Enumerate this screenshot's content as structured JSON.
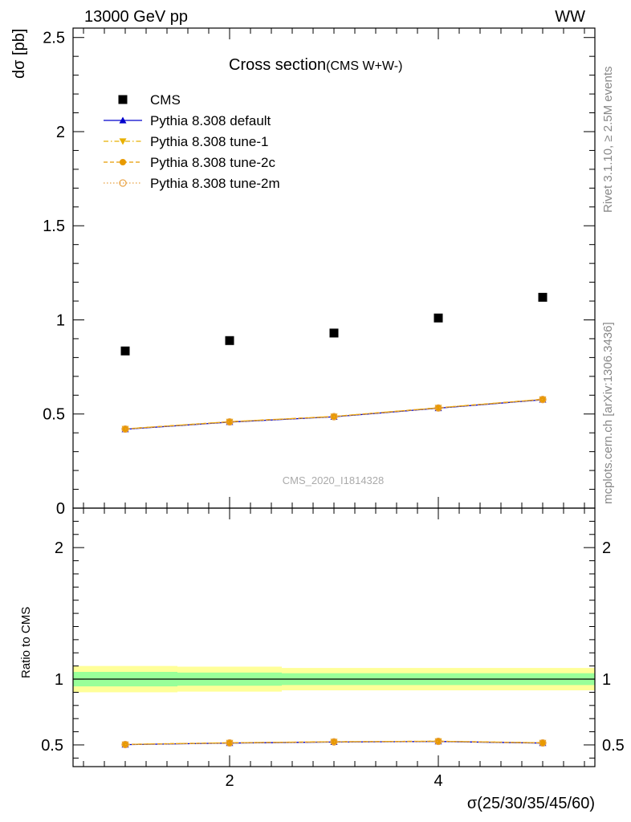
{
  "header": {
    "energy_label": "13000 GeV pp",
    "process_label": "WW",
    "title_main": "Cross section",
    "title_sub": "(CMS W+W-)",
    "side_rivet": "Rivet 3.1.10, ≥ 2.5M events",
    "side_mcplots": "mcplots.cern.ch [arXiv:1306.3436]",
    "watermark": "CMS_2020_I1814328"
  },
  "chart_data": [
    {
      "type": "scatter",
      "title": "Cross section (CMS W+W-)",
      "xlabel": "σ(25/30/35/45/60)",
      "ylabel": "dσ [pb]",
      "xlim": [
        0.5,
        5.5
      ],
      "ylim": [
        0,
        2.55
      ],
      "y_ticks": [
        "0",
        "0.5",
        "1",
        "1.5",
        "2",
        "2.5"
      ],
      "y_tick_values": [
        0,
        0.5,
        1,
        1.5,
        2,
        2.5
      ],
      "legend_position": "top-left",
      "series": [
        {
          "name": "CMS",
          "color": "#000000",
          "marker": "square",
          "x": [
            1,
            2,
            3,
            4,
            5
          ],
          "values": [
            0.835,
            0.89,
            0.93,
            1.01,
            1.12
          ]
        },
        {
          "name": "Pythia 8.308 default",
          "color": "#0000cc",
          "marker": "triangle-up",
          "line": "solid",
          "x": [
            1,
            2,
            3,
            4,
            5
          ],
          "values": [
            0.419,
            0.457,
            0.485,
            0.531,
            0.576
          ]
        },
        {
          "name": "Pythia 8.308 tune-1",
          "color": "#e8b000",
          "marker": "triangle-down",
          "line": "dashdot",
          "x": [
            1,
            2,
            3,
            4,
            5
          ],
          "values": [
            0.421,
            0.459,
            0.487,
            0.533,
            0.578
          ]
        },
        {
          "name": "Pythia 8.308 tune-2c",
          "color": "#e89a00",
          "marker": "circle",
          "line": "dashed",
          "x": [
            1,
            2,
            3,
            4,
            5
          ],
          "values": [
            0.421,
            0.459,
            0.487,
            0.533,
            0.578
          ]
        },
        {
          "name": "Pythia 8.308 tune-2m",
          "color": "#e8a040",
          "marker": "circle-open",
          "line": "dotted",
          "x": [
            1,
            2,
            3,
            4,
            5
          ],
          "values": [
            0.42,
            0.458,
            0.486,
            0.532,
            0.577
          ]
        }
      ]
    },
    {
      "type": "line",
      "ylabel": "Ratio to CMS",
      "xlabel": "σ(25/30/35/45/60)",
      "xlim": [
        0.5,
        5.5
      ],
      "ylim": [
        0.335,
        2.3
      ],
      "x_ticks": [
        "2",
        "4"
      ],
      "x_tick_values": [
        2,
        4
      ],
      "y_ticks": [
        "0.5",
        "1",
        "2"
      ],
      "y_tick_values": [
        0.5,
        1,
        2
      ],
      "reference_line": 1,
      "bands": {
        "x_edges": [
          0.5,
          1.5,
          2.5,
          3.5,
          4.5,
          5.5
        ],
        "stat_color": "#99ff99",
        "total_color": "#ffff99",
        "stat_half_widths": [
          0.055,
          0.05,
          0.045,
          0.045,
          0.045
        ],
        "total_half_widths": [
          0.1,
          0.095,
          0.085,
          0.085,
          0.085
        ]
      },
      "series": [
        {
          "name": "Pythia 8.308 default",
          "color": "#0000cc",
          "x": [
            1,
            2,
            3,
            4,
            5
          ],
          "values": [
            0.502,
            0.514,
            0.522,
            0.526,
            0.514
          ]
        },
        {
          "name": "Pythia 8.308 tune-1",
          "color": "#e8b000",
          "x": [
            1,
            2,
            3,
            4,
            5
          ],
          "values": [
            0.504,
            0.516,
            0.524,
            0.528,
            0.516
          ]
        },
        {
          "name": "Pythia 8.308 tune-2c",
          "color": "#e89a00",
          "x": [
            1,
            2,
            3,
            4,
            5
          ],
          "values": [
            0.504,
            0.516,
            0.524,
            0.528,
            0.516
          ]
        },
        {
          "name": "Pythia 8.308 tune-2m",
          "color": "#e8a040",
          "x": [
            1,
            2,
            3,
            4,
            5
          ],
          "values": [
            0.503,
            0.515,
            0.523,
            0.527,
            0.515
          ]
        }
      ]
    }
  ]
}
